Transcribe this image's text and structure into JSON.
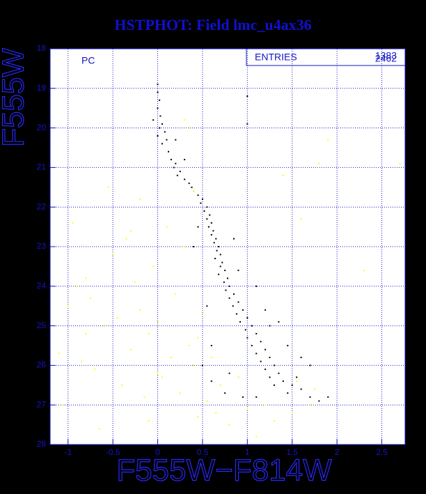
{
  "chart_data": {
    "type": "scatter",
    "title": "HSTPHOT: Field lmc_u4ax36",
    "annotation": "PC",
    "stats_label": "ENTRIES",
    "stats_values": [
      "1383",
      "2462"
    ],
    "xlabel": "F555W−F814W",
    "ylabel": "F555W",
    "xlim": [
      -1.2,
      2.76
    ],
    "ylim": [
      28,
      18
    ],
    "xticks": [
      -1,
      -0.5,
      0,
      0.5,
      1,
      1.5,
      2,
      2.5
    ],
    "yticks": [
      18,
      19,
      20,
      21,
      22,
      23,
      24,
      25,
      26,
      27,
      28
    ],
    "grid": true,
    "series": [
      {
        "color": "#000000",
        "x": [
          0.0,
          0.0,
          0.02,
          0.0,
          0.03,
          -0.05,
          0.05,
          0.02,
          0.08,
          0.0,
          0.1,
          0.05,
          0.12,
          0.15,
          0.2,
          0.18,
          0.25,
          0.22,
          0.3,
          0.35,
          0.38,
          0.4,
          0.45,
          0.5,
          0.48,
          0.55,
          0.52,
          0.58,
          0.55,
          0.6,
          0.57,
          0.62,
          0.6,
          0.65,
          0.63,
          0.68,
          0.66,
          0.7,
          0.64,
          0.72,
          0.7,
          0.75,
          0.68,
          0.78,
          0.74,
          0.8,
          0.76,
          0.85,
          0.8,
          0.9,
          0.84,
          0.95,
          0.88,
          1.0,
          0.92,
          1.05,
          0.98,
          1.1,
          1.0,
          1.15,
          1.05,
          1.2,
          1.1,
          1.25,
          1.15,
          1.3,
          1.2,
          1.35,
          1.25,
          1.4,
          1.3,
          1.5,
          1.45,
          1.6,
          1.7,
          1.55,
          1.8,
          1.9,
          0.6,
          0.75,
          0.95,
          1.1,
          1.6,
          1.7,
          1.45,
          1.35,
          1.25,
          0.55,
          0.6,
          0.8,
          0.45,
          0.4,
          0.9,
          0.85,
          0.3,
          0.2,
          1.0,
          1.0,
          1.2,
          1.1,
          0.5
        ],
        "y": [
          18.9,
          19.1,
          19.3,
          19.5,
          19.7,
          19.8,
          19.9,
          20.0,
          20.1,
          20.2,
          20.3,
          20.4,
          20.6,
          20.8,
          20.9,
          21.0,
          21.1,
          21.2,
          21.3,
          21.4,
          21.5,
          21.6,
          21.7,
          21.8,
          21.9,
          22.0,
          22.1,
          22.2,
          22.3,
          22.4,
          22.5,
          22.6,
          22.7,
          22.8,
          22.9,
          23.0,
          23.1,
          23.2,
          23.3,
          23.4,
          23.5,
          23.6,
          23.7,
          23.8,
          23.9,
          24.0,
          24.1,
          24.2,
          24.3,
          24.4,
          24.5,
          24.6,
          24.7,
          24.8,
          24.9,
          25.0,
          25.1,
          25.2,
          25.3,
          25.4,
          25.5,
          25.6,
          25.7,
          25.8,
          25.9,
          26.0,
          26.1,
          26.2,
          26.3,
          26.4,
          26.5,
          26.5,
          26.7,
          26.6,
          26.8,
          26.3,
          26.9,
          26.8,
          26.4,
          26.7,
          26.8,
          26.8,
          25.8,
          26.0,
          25.5,
          24.9,
          25.0,
          24.5,
          25.5,
          26.2,
          22.5,
          23.0,
          23.6,
          22.8,
          20.8,
          20.3,
          19.2,
          19.9,
          24.6,
          24.0,
          26.0
        ]
      },
      {
        "color": "#ffff00",
        "x": [
          -1.1,
          -1.0,
          -0.9,
          -0.85,
          -0.8,
          -0.75,
          -0.7,
          -0.6,
          -0.5,
          -0.45,
          -0.4,
          -0.35,
          -0.3,
          -0.25,
          -0.2,
          -0.15,
          -0.1,
          -0.05,
          0.0,
          0.05,
          0.1,
          0.15,
          0.2,
          0.25,
          0.3,
          0.35,
          0.4,
          0.45,
          0.5,
          0.55,
          0.65,
          0.7,
          0.8,
          0.9,
          1.0,
          1.1,
          1.2,
          1.3,
          1.5,
          1.7,
          1.75,
          -0.95,
          -1.05,
          -0.65,
          -0.55,
          -0.2,
          0.4,
          1.4,
          1.9,
          2.3,
          2.7,
          1.6,
          0.35,
          0.3,
          1.8,
          -0.3,
          -0.8,
          0.0,
          0.6,
          0.45,
          1.55,
          -0.1
        ],
        "y": [
          25.7,
          24.5,
          24.0,
          25.9,
          23.8,
          24.3,
          26.1,
          25.0,
          23.2,
          24.8,
          26.5,
          22.8,
          25.6,
          23.9,
          24.6,
          26.8,
          25.2,
          23.5,
          24.9,
          26.3,
          22.5,
          25.8,
          24.2,
          26.7,
          23.0,
          25.5,
          26.0,
          27.3,
          24.7,
          26.9,
          27.2,
          26.5,
          27.5,
          26.3,
          27.1,
          27.8,
          27.0,
          27.4,
          27.2,
          27.0,
          26.6,
          22.4,
          27.0,
          27.6,
          21.5,
          21.8,
          21.6,
          21.2,
          20.3,
          23.6,
          20.9,
          22.3,
          20.0,
          19.8,
          20.9,
          22.6,
          25.2,
          26.2,
          25.8,
          25.3,
          26.4,
          27.4
        ]
      }
    ]
  }
}
